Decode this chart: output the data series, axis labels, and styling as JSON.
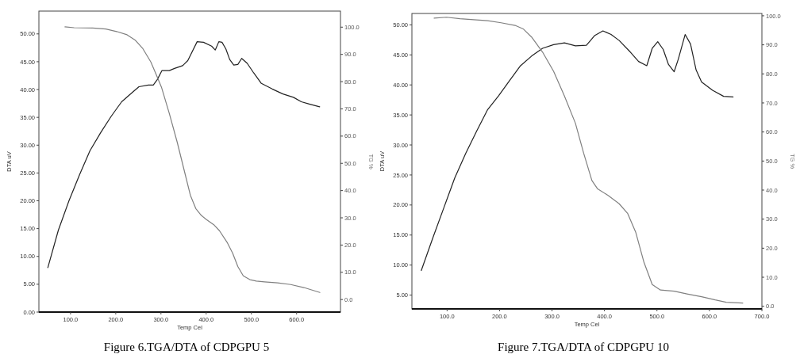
{
  "chart_data": [
    {
      "type": "line",
      "title": "Figure 6.TGA/DTA of CDPGPU 5",
      "xlabel": "Temp Cel",
      "ylabel": "DTA uV",
      "y2label": "TG %",
      "xlim": [
        30,
        697
      ],
      "ylim": [
        0,
        54.1
      ],
      "y2lim": [
        -4.6,
        105.9
      ],
      "xticks": [
        {
          "value": 100,
          "label": "100.0"
        },
        {
          "value": 200,
          "label": "200.0"
        },
        {
          "value": 300,
          "label": "300.0"
        },
        {
          "value": 400,
          "label": "400.0"
        },
        {
          "value": 500,
          "label": "500.0"
        },
        {
          "value": 600,
          "label": "600.0"
        }
      ],
      "yticks": [
        {
          "value": 0,
          "label": "0.00"
        },
        {
          "value": 5,
          "label": "5.00"
        },
        {
          "value": 10,
          "label": "10.00"
        },
        {
          "value": 15,
          "label": "15.00"
        },
        {
          "value": 20,
          "label": "20.00"
        },
        {
          "value": 25,
          "label": "25.00"
        },
        {
          "value": 30,
          "label": "30.00"
        },
        {
          "value": 35,
          "label": "35.00"
        },
        {
          "value": 40,
          "label": "40.00"
        },
        {
          "value": 45,
          "label": "45.00"
        },
        {
          "value": 50,
          "label": "50.00"
        }
      ],
      "y2ticks": [
        {
          "value": 0,
          "label": "0.0"
        },
        {
          "value": 10,
          "label": "10.0"
        },
        {
          "value": 20,
          "label": "20.0"
        },
        {
          "value": 30,
          "label": "30.0"
        },
        {
          "value": 40,
          "label": "40.0"
        },
        {
          "value": 50,
          "label": "50.0"
        },
        {
          "value": 60,
          "label": "60.0"
        },
        {
          "value": 70,
          "label": "70.0"
        },
        {
          "value": 80,
          "label": "80.0"
        },
        {
          "value": 90,
          "label": "90.0"
        },
        {
          "value": 100,
          "label": "100.0"
        }
      ],
      "line_style": "solid",
      "marker": "none",
      "series": [
        {
          "color": "#222222",
          "x": [
            49.8,
            73,
            96.5,
            120,
            143,
            167,
            190,
            213,
            237,
            251.3,
            272,
            283,
            292,
            302,
            318.5,
            330,
            348,
            359.3,
            380,
            394,
            412,
            420,
            428,
            435,
            443.5,
            452,
            461,
            470,
            478.5,
            490.8,
            505,
            522,
            546,
            569.6,
            593,
            610.5,
            628,
            651
          ],
          "values": [
            8.0,
            14.7,
            20.0,
            24.7,
            29.0,
            32.3,
            35.2,
            37.8,
            39.5,
            40.5,
            40.8,
            40.8,
            41.8,
            43.4,
            43.4,
            43.8,
            44.3,
            45.2,
            48.6,
            48.5,
            47.8,
            47.1,
            48.6,
            48.5,
            47.3,
            45.4,
            44.4,
            44.5,
            45.6,
            44.7,
            43.0,
            41.1,
            40.1,
            39.2,
            38.6,
            37.8,
            37.4,
            36.9
          ]
        },
        {
          "color": "#808080",
          "axis": "y2",
          "x": [
            87.7,
            108,
            149,
            178,
            202,
            225,
            242.5,
            260,
            277.6,
            289,
            301,
            318.5,
            336,
            353.5,
            365,
            377,
            388.6,
            400,
            418,
            429.6,
            447,
            458.6,
            470,
            482,
            496.6,
            511,
            528.7,
            557.9,
            587,
            616,
            651.4
          ],
          "values": [
            100.1,
            99.8,
            99.7,
            99.3,
            98.4,
            97.2,
            95.3,
            92.1,
            87.2,
            82.8,
            78.0,
            68.3,
            57.7,
            46.0,
            38.3,
            33.4,
            31.0,
            29.4,
            27.3,
            25.2,
            20.8,
            17.0,
            12.1,
            8.7,
            7.3,
            6.8,
            6.5,
            6.1,
            5.5,
            4.4,
            2.6
          ]
        }
      ]
    },
    {
      "type": "line",
      "title": "Figure 7.TGA/DTA of CDPGPU 10",
      "xlabel": "Temp Cel",
      "ylabel": "DTA uV",
      "y2label": "TG %",
      "xlim": [
        33,
        700
      ],
      "ylim": [
        2.7,
        51.9
      ],
      "y2lim": [
        -0.9,
        100.8
      ],
      "xticks": [
        {
          "value": 100,
          "label": "100.0"
        },
        {
          "value": 200,
          "label": "200.0"
        },
        {
          "value": 300,
          "label": "300.0"
        },
        {
          "value": 400,
          "label": "400.0"
        },
        {
          "value": 500,
          "label": "500.0"
        },
        {
          "value": 600,
          "label": "600.0"
        },
        {
          "value": 700,
          "label": "700.0"
        }
      ],
      "yticks": [
        {
          "value": 5,
          "label": "5.00"
        },
        {
          "value": 10,
          "label": "10.00"
        },
        {
          "value": 15,
          "label": "15.00"
        },
        {
          "value": 20,
          "label": "20.00"
        },
        {
          "value": 25,
          "label": "25.00"
        },
        {
          "value": 30,
          "label": "30.00"
        },
        {
          "value": 35,
          "label": "35.00"
        },
        {
          "value": 40,
          "label": "40.00"
        },
        {
          "value": 45,
          "label": "45.00"
        },
        {
          "value": 50,
          "label": "50.00"
        }
      ],
      "y2ticks": [
        {
          "value": 0,
          "label": "0.0"
        },
        {
          "value": 10,
          "label": "10.0"
        },
        {
          "value": 20,
          "label": "20.0"
        },
        {
          "value": 30,
          "label": "30.0"
        },
        {
          "value": 40,
          "label": "40.0"
        },
        {
          "value": 50,
          "label": "50.0"
        },
        {
          "value": 60,
          "label": "60.0"
        },
        {
          "value": 70,
          "label": "70.0"
        },
        {
          "value": 80,
          "label": "80.0"
        },
        {
          "value": 90,
          "label": "90.0"
        },
        {
          "value": 100,
          "label": "100.0"
        }
      ],
      "line_style": "solid",
      "marker": "none",
      "series": [
        {
          "color": "#222222",
          "x": [
            50.9,
            72.8,
            93.7,
            114.6,
            135.5,
            156.4,
            177.4,
            198.3,
            219,
            240,
            261,
            282,
            303,
            323.7,
            344.6,
            365.6,
            381,
            397,
            412.6,
            428,
            449,
            465,
            480.6,
            491,
            501.5,
            512,
            522,
            532.8,
            540.7,
            553.7,
            564,
            574.6,
            585,
            606,
            627,
            645
          ],
          "values": [
            9.1,
            14.5,
            19.5,
            24.5,
            28.6,
            32.3,
            35.9,
            38.2,
            40.7,
            43.2,
            44.8,
            46.1,
            46.7,
            47.0,
            46.5,
            46.6,
            48.2,
            49.0,
            48.4,
            47.4,
            45.5,
            43.9,
            43.2,
            46.1,
            47.2,
            45.9,
            43.4,
            42.2,
            44.3,
            48.4,
            46.8,
            42.5,
            40.5,
            39.1,
            38.1,
            38.0
          ]
        },
        {
          "color": "#808080",
          "axis": "y2",
          "x": [
            75.4,
            99,
            124.6,
            156,
            177.4,
            203,
            229.6,
            245,
            261,
            282,
            303,
            323.7,
            344.6,
            360.3,
            376,
            386.5,
            407.4,
            428,
            444,
            459.7,
            475.3,
            491,
            506.7,
            532.8,
            559,
            585,
            611,
            632,
            663.5
          ],
          "values": [
            99.2,
            99.5,
            99.0,
            98.6,
            98.3,
            97.6,
            96.7,
            95.5,
            92.7,
            87.5,
            80.9,
            72.4,
            63.0,
            52.7,
            43.3,
            40.5,
            38.1,
            35.3,
            32.0,
            25.4,
            15.1,
            7.5,
            5.6,
            5.2,
            4.2,
            3.3,
            2.2,
            1.4,
            1.1
          ]
        }
      ]
    }
  ]
}
